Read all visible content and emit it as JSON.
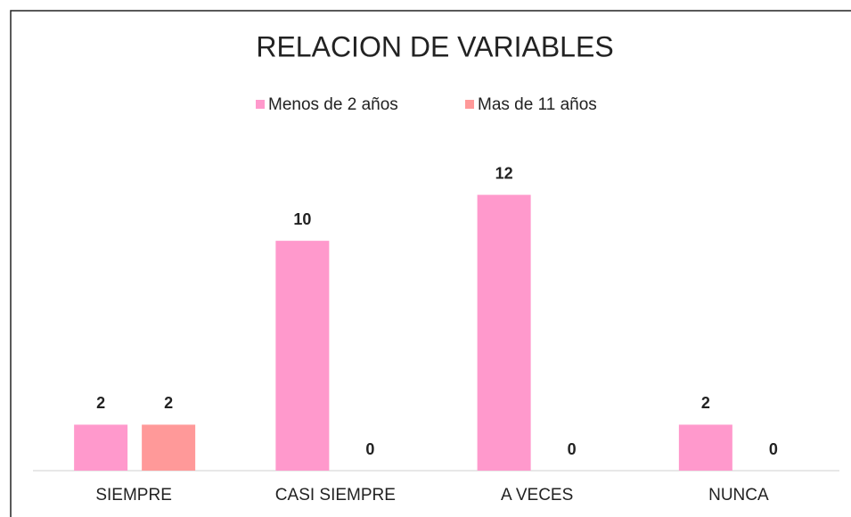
{
  "chart_data": {
    "type": "bar",
    "title": "RELACION DE VARIABLES",
    "categories": [
      "SIEMPRE",
      "CASI SIEMPRE",
      "A VECES",
      "NUNCA"
    ],
    "series": [
      {
        "name": "Menos de 2 años",
        "color": "#ff99cc",
        "values": [
          2,
          10,
          12,
          2
        ]
      },
      {
        "name": "Mas de 11 años",
        "color": "#ff9999",
        "values": [
          2,
          0,
          0,
          0
        ]
      }
    ],
    "ylim": [
      0,
      14
    ],
    "legend": "top"
  }
}
